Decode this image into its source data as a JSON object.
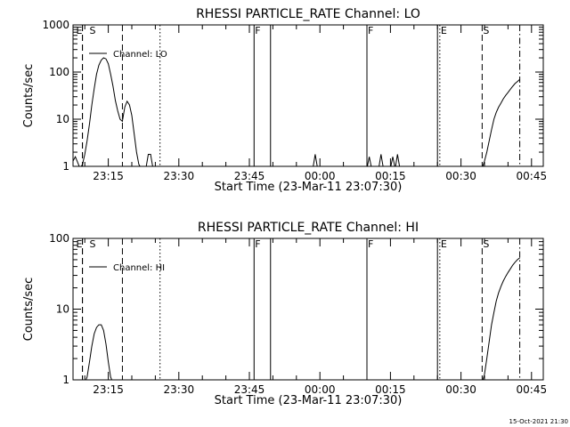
{
  "stamp": "15-Oct-2021 21:30",
  "chart_data": [
    {
      "type": "line",
      "title": "RHESSI PARTICLE_RATE Channel: LO",
      "xlabel": "Start Time (23-Mar-11 23:07:30)",
      "ylabel": "Counts/sec",
      "yscale": "log",
      "ylim": [
        1,
        1000
      ],
      "xlim": [
        "23:07:30",
        "00:47:30"
      ],
      "xticks": [
        "23:15",
        "23:30",
        "23:45",
        "00:00",
        "00:15",
        "00:30",
        "00:45"
      ],
      "yticks": [
        "1",
        "10",
        "100",
        "1000"
      ],
      "legend": {
        "label": "Channel: LO",
        "position": "top-left"
      },
      "markers": [
        {
          "time": "23:09:30",
          "style": "dashed",
          "label": "E"
        },
        {
          "time": "23:09:30",
          "style": "dashed",
          "label": "S"
        },
        {
          "time": "23:18:00",
          "style": "dashed",
          "label": ""
        },
        {
          "time": "23:26:00",
          "style": "dotted",
          "label": ""
        },
        {
          "time": "23:46:00",
          "style": "solid",
          "label": "F"
        },
        {
          "time": "23:49:30",
          "style": "solid",
          "label": ""
        },
        {
          "time": "00:10:00",
          "style": "solid",
          "label": "F"
        },
        {
          "time": "00:25:00",
          "style": "solid",
          "label": ""
        },
        {
          "time": "00:25:30",
          "style": "dotted",
          "label": "E"
        },
        {
          "time": "00:34:30",
          "style": "dashed",
          "label": "S"
        },
        {
          "time": "00:42:30",
          "style": "dashdot",
          "label": ""
        }
      ],
      "series": [
        {
          "points": [
            [
              "23:07:30",
              1.3
            ],
            [
              "23:08:00",
              1.6
            ],
            [
              "23:08:30",
              1.2
            ],
            [
              "23:09:00",
              0.9
            ],
            [
              "23:09:30",
              1.1
            ],
            [
              "23:10:00",
              1.8
            ],
            [
              "23:10:30",
              3.5
            ],
            [
              "23:11:00",
              8
            ],
            [
              "23:11:30",
              20
            ],
            [
              "23:12:00",
              45
            ],
            [
              "23:12:30",
              90
            ],
            [
              "23:13:00",
              140
            ],
            [
              "23:13:30",
              180
            ],
            [
              "23:14:00",
              200
            ],
            [
              "23:14:30",
              190
            ],
            [
              "23:15:00",
              150
            ],
            [
              "23:15:30",
              90
            ],
            [
              "23:16:00",
              50
            ],
            [
              "23:16:30",
              25
            ],
            [
              "23:17:00",
              15
            ],
            [
              "23:17:30",
              10
            ],
            [
              "23:18:00",
              9
            ],
            [
              "23:18:30",
              18
            ],
            [
              "23:19:00",
              24
            ],
            [
              "23:19:30",
              20
            ],
            [
              "23:20:00",
              12
            ],
            [
              "23:20:30",
              5
            ],
            [
              "23:21:00",
              2
            ],
            [
              "23:21:30",
              1.1
            ],
            [
              "23:22:00",
              0.9
            ],
            [
              "23:23:00",
              0.9
            ],
            [
              "23:23:30",
              1.8
            ],
            [
              "23:24:00",
              1.8
            ],
            [
              "23:24:30",
              0.9
            ],
            [
              "23:58:30",
              0.9
            ],
            [
              "23:59:00",
              1.8
            ],
            [
              "23:59:30",
              0.9
            ],
            [
              "00:10:00",
              0.9
            ],
            [
              "00:10:30",
              1.6
            ],
            [
              "00:11:00",
              0.9
            ],
            [
              "00:12:30",
              0.9
            ],
            [
              "00:13:00",
              1.8
            ],
            [
              "00:13:30",
              0.9
            ],
            [
              "00:15:00",
              0.9
            ],
            [
              "00:15:30",
              1.6
            ],
            [
              "00:16:00",
              0.9
            ],
            [
              "00:16:30",
              1.8
            ],
            [
              "00:17:00",
              0.9
            ],
            [
              "00:34:30",
              0.9
            ],
            [
              "00:35:00",
              1.3
            ],
            [
              "00:35:30",
              2
            ],
            [
              "00:36:00",
              3.5
            ],
            [
              "00:36:30",
              6
            ],
            [
              "00:37:00",
              10
            ],
            [
              "00:37:30",
              14
            ],
            [
              "00:38:00",
              18
            ],
            [
              "00:38:30",
              22
            ],
            [
              "00:39:00",
              27
            ],
            [
              "00:39:30",
              32
            ],
            [
              "00:40:00",
              37
            ],
            [
              "00:40:30",
              43
            ],
            [
              "00:41:00",
              50
            ],
            [
              "00:41:30",
              57
            ],
            [
              "00:42:00",
              63
            ],
            [
              "00:42:30",
              70
            ]
          ]
        }
      ]
    },
    {
      "type": "line",
      "title": "RHESSI PARTICLE_RATE Channel: HI",
      "xlabel": "Start Time (23-Mar-11 23:07:30)",
      "ylabel": "Counts/sec",
      "yscale": "log",
      "ylim": [
        1,
        100
      ],
      "xlim": [
        "23:07:30",
        "00:47:30"
      ],
      "xticks": [
        "23:15",
        "23:30",
        "23:45",
        "00:00",
        "00:15",
        "00:30",
        "00:45"
      ],
      "yticks": [
        "1",
        "10",
        "100"
      ],
      "legend": {
        "label": "Channel: HI",
        "position": "top-left"
      },
      "markers": [
        {
          "time": "23:09:30",
          "style": "dashed",
          "label": "E"
        },
        {
          "time": "23:09:30",
          "style": "dashed",
          "label": "S"
        },
        {
          "time": "23:18:00",
          "style": "dashed",
          "label": ""
        },
        {
          "time": "23:26:00",
          "style": "dotted",
          "label": ""
        },
        {
          "time": "23:46:00",
          "style": "solid",
          "label": "F"
        },
        {
          "time": "23:49:30",
          "style": "solid",
          "label": ""
        },
        {
          "time": "00:10:00",
          "style": "solid",
          "label": "F"
        },
        {
          "time": "00:25:00",
          "style": "solid",
          "label": ""
        },
        {
          "time": "00:25:30",
          "style": "dotted",
          "label": "E"
        },
        {
          "time": "00:34:30",
          "style": "dashed",
          "label": "S"
        },
        {
          "time": "00:42:30",
          "style": "dashdot",
          "label": ""
        }
      ],
      "series": [
        {
          "points": [
            [
              "23:10:00",
              0.9
            ],
            [
              "23:10:30",
              1.1
            ],
            [
              "23:11:00",
              1.8
            ],
            [
              "23:11:30",
              3
            ],
            [
              "23:12:00",
              4.5
            ],
            [
              "23:12:30",
              5.5
            ],
            [
              "23:13:00",
              6
            ],
            [
              "23:13:30",
              6
            ],
            [
              "23:14:00",
              5
            ],
            [
              "23:14:30",
              3.2
            ],
            [
              "23:15:00",
              1.8
            ],
            [
              "23:15:30",
              1.1
            ],
            [
              "23:16:00",
              0.9
            ],
            [
              "00:34:30",
              0.9
            ],
            [
              "00:35:00",
              1.2
            ],
            [
              "00:35:30",
              2
            ],
            [
              "00:36:00",
              3.5
            ],
            [
              "00:36:30",
              6
            ],
            [
              "00:37:00",
              9
            ],
            [
              "00:37:30",
              13
            ],
            [
              "00:38:00",
              17
            ],
            [
              "00:38:30",
              21
            ],
            [
              "00:39:00",
              25
            ],
            [
              "00:39:30",
              29
            ],
            [
              "00:40:00",
              33
            ],
            [
              "00:40:30",
              37
            ],
            [
              "00:41:00",
              42
            ],
            [
              "00:41:30",
              46
            ],
            [
              "00:42:00",
              50
            ],
            [
              "00:42:30",
              53
            ]
          ]
        }
      ]
    }
  ]
}
